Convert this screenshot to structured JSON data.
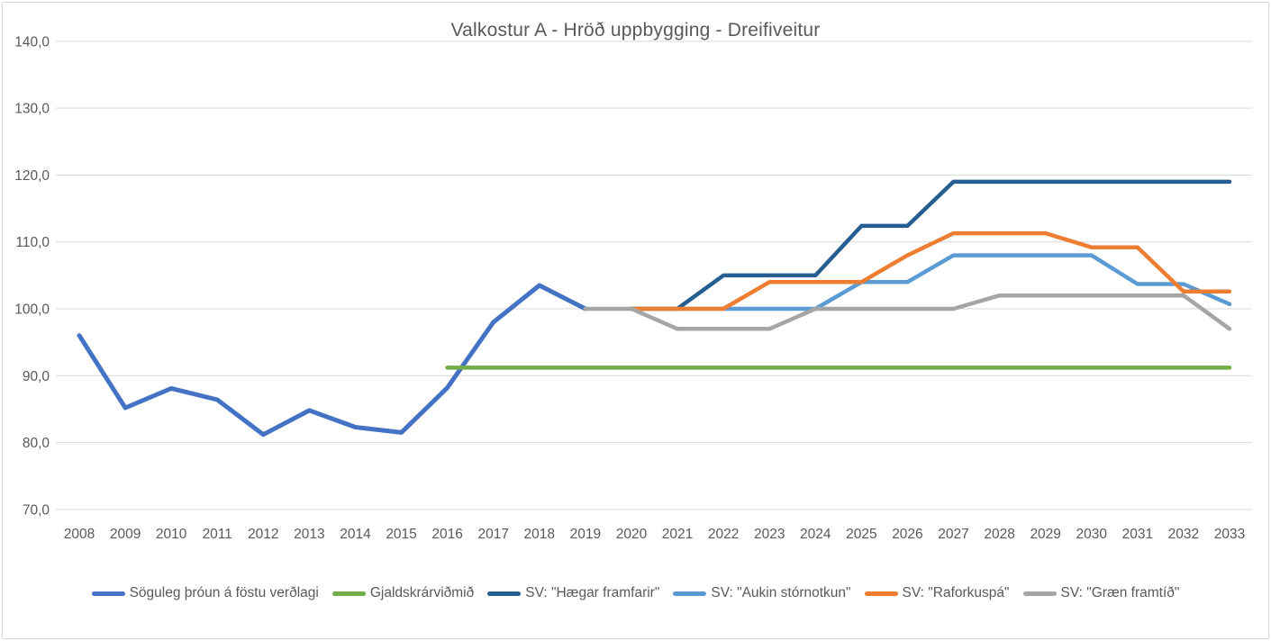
{
  "chart": {
    "title": "Valkostur A - Hröð uppbygging - Dreifiveitur"
  },
  "chart_data": {
    "type": "line",
    "title": "Valkostur A - Hröð uppbygging - Dreifiveitur",
    "x": [
      2008,
      2009,
      2010,
      2011,
      2012,
      2013,
      2014,
      2015,
      2016,
      2017,
      2018,
      2019,
      2020,
      2021,
      2022,
      2023,
      2024,
      2025,
      2026,
      2027,
      2028,
      2029,
      2030,
      2031,
      2032,
      2033
    ],
    "x_tick_labels": [
      "2008",
      "2009",
      "2010",
      "2011",
      "2012",
      "2013",
      "2014",
      "2015",
      "2016",
      "2017",
      "2018",
      "2019",
      "2020",
      "2021",
      "2022",
      "2023",
      "2024",
      "2025",
      "2026",
      "2027",
      "2028",
      "2029",
      "2030",
      "2031",
      "2032",
      "2033"
    ],
    "ylim": [
      70,
      140
    ],
    "y_tick_step": 10,
    "y_tick_values": [
      70,
      80,
      90,
      100,
      110,
      120,
      130,
      140
    ],
    "y_tick_labels": [
      "70,0",
      "80,0",
      "90,0",
      "100,0",
      "110,0",
      "120,0",
      "130,0",
      "140,0"
    ],
    "grid": "horizontal",
    "gridline_color": "#d9d9d9",
    "text_color": "#595959",
    "legend_position": "bottom",
    "series": [
      {
        "name": "Söguleg þróun á föstu verðlagi",
        "color": "#4472C4",
        "start_year": 2008,
        "values": [
          96.0,
          85.2,
          88.1,
          86.4,
          81.2,
          84.8,
          82.3,
          81.5,
          88.2,
          98.0,
          103.5,
          100.0
        ]
      },
      {
        "name": "Gjaldskrárviðmið",
        "color": "#70AD47",
        "start_year": 2016,
        "values": [
          91.2,
          91.2,
          91.2,
          91.2,
          91.2,
          91.2,
          91.2,
          91.2,
          91.2,
          91.2,
          91.2,
          91.2,
          91.2,
          91.2,
          91.2,
          91.2,
          91.2,
          91.2
        ]
      },
      {
        "name": "SV: \"Hægar framfarir\"",
        "color": "#255E91",
        "start_year": 2020,
        "values": [
          100.0,
          100.0,
          105.0,
          105.0,
          105.0,
          112.4,
          112.4,
          119.0,
          119.0,
          119.0,
          119.0,
          119.0,
          119.0,
          119.0
        ]
      },
      {
        "name": "SV: \"Aukin stórnotkun\"",
        "color": "#5B9BD5",
        "start_year": 2020,
        "values": [
          100.0,
          100.0,
          100.0,
          100.0,
          100.0,
          104.0,
          104.0,
          108.0,
          108.0,
          108.0,
          108.0,
          103.7,
          103.7,
          100.7
        ]
      },
      {
        "name": "SV: \"Raforkuspá\"",
        "color": "#ED7D31",
        "start_year": 2020,
        "values": [
          100.0,
          100.0,
          100.0,
          104.0,
          104.0,
          104.0,
          108.0,
          111.3,
          111.3,
          111.3,
          109.2,
          109.2,
          102.6,
          102.6
        ]
      },
      {
        "name": "SV: \"Græn framtíð\"",
        "color": "#A5A5A5",
        "start_year": 2019,
        "values": [
          100.0,
          100.0,
          97.0,
          97.0,
          97.0,
          100.0,
          100.0,
          100.0,
          100.0,
          102.0,
          102.0,
          102.0,
          102.0,
          102.0,
          97.0
        ]
      }
    ]
  }
}
